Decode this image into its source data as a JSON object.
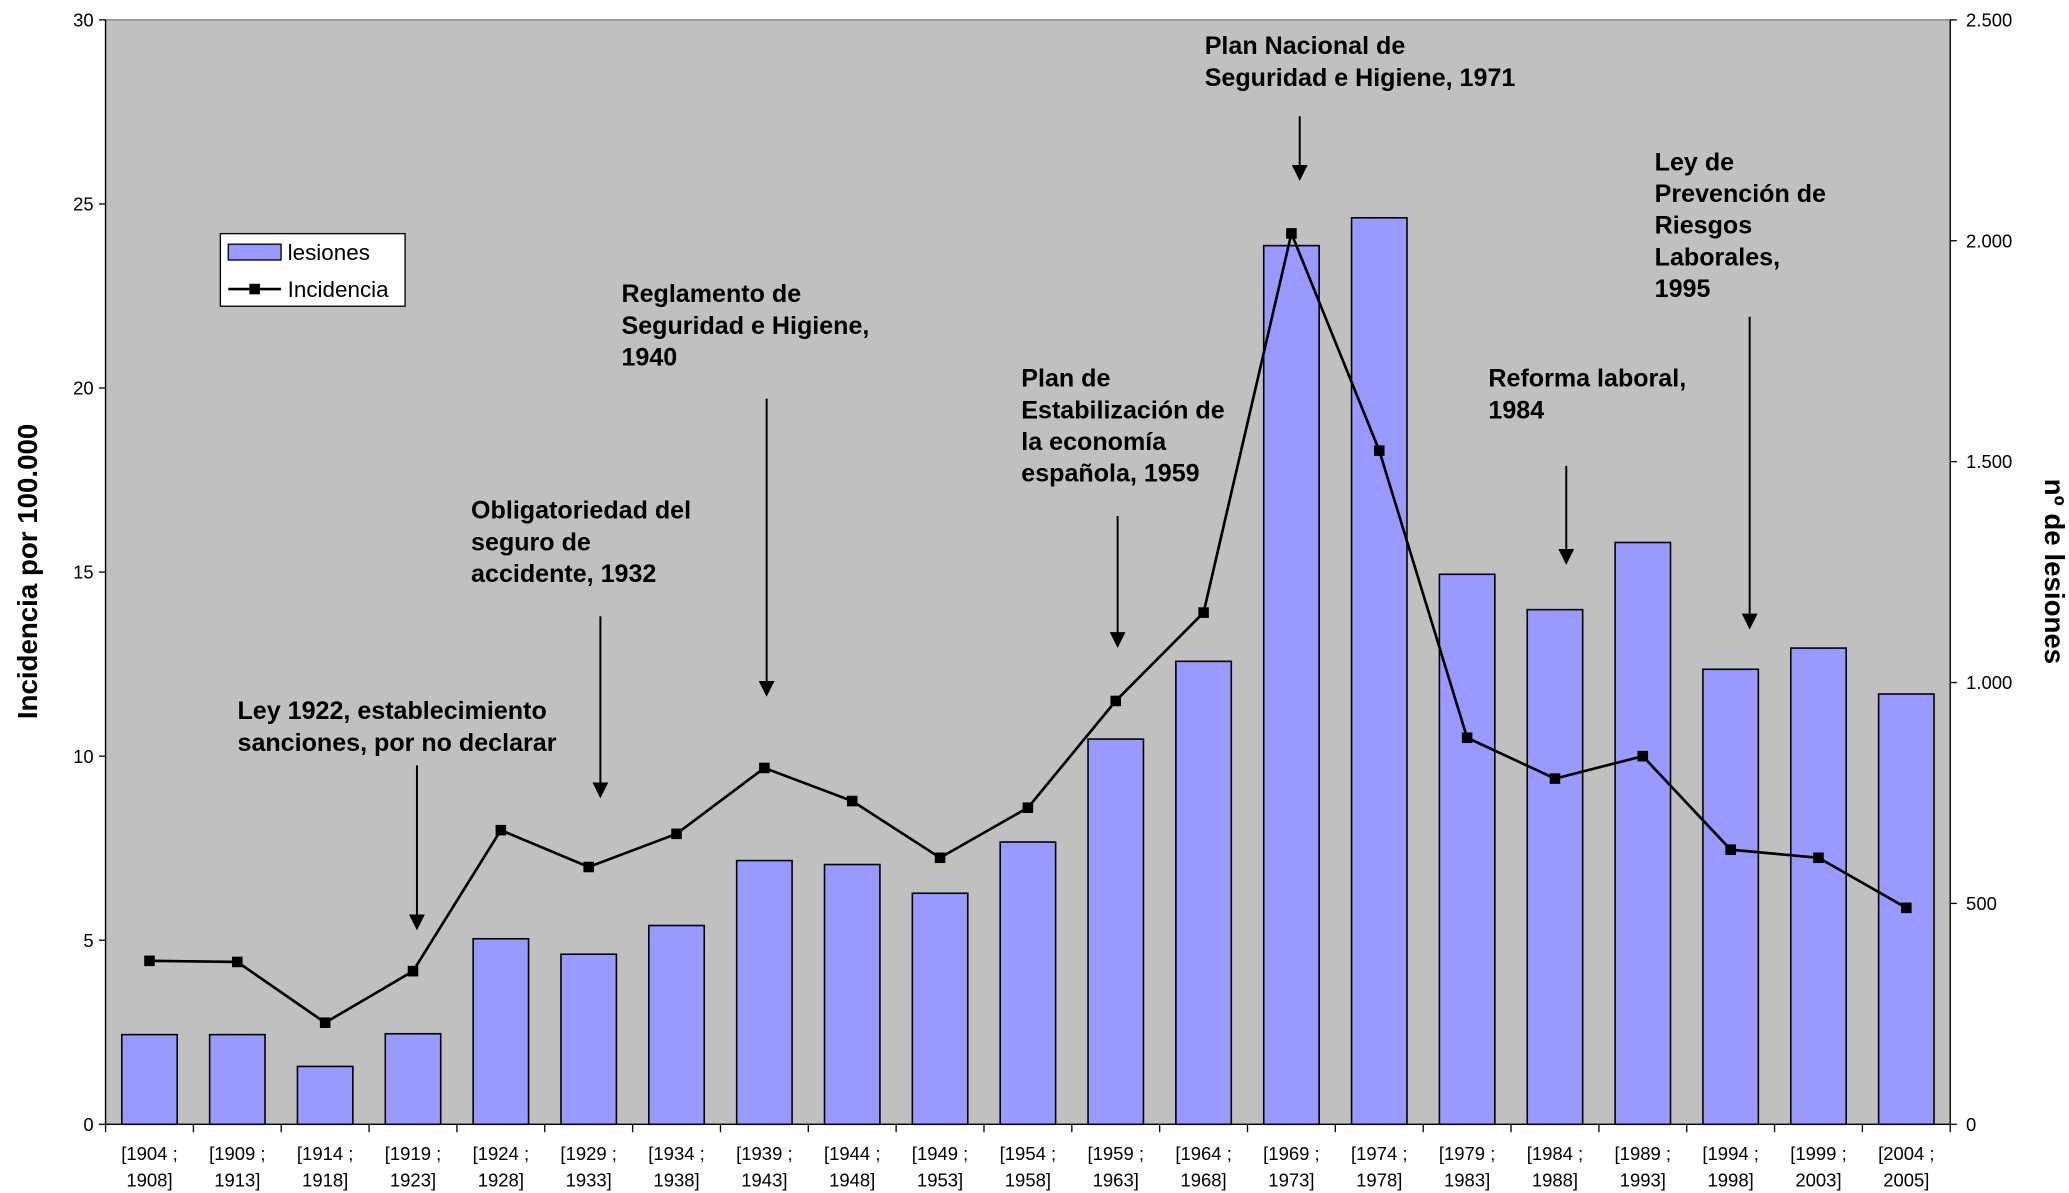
{
  "chart_data": {
    "type": "bar_line",
    "y_title": "Incidencia por 100.000",
    "y2_title": "nº de lesiones",
    "categories": [
      [
        "[1904 ;",
        "1908]"
      ],
      [
        "[1909 ;",
        "1913]"
      ],
      [
        "[1914 ;",
        "1918]"
      ],
      [
        "[1919 ;",
        "1923]"
      ],
      [
        "[1924 ;",
        "1928]"
      ],
      [
        "[1929 ;",
        "1933]"
      ],
      [
        "[1934 ;",
        "1938]"
      ],
      [
        "[1939 ;",
        "1943]"
      ],
      [
        "[1944 ;",
        "1948]"
      ],
      [
        "[1949 ;",
        "1953]"
      ],
      [
        "[1954 ;",
        "1958]"
      ],
      [
        "[1959 ;",
        "1963]"
      ],
      [
        "[1964 ;",
        "1968]"
      ],
      [
        "[1969 ;",
        "1973]"
      ],
      [
        "[1974 ;",
        "1978]"
      ],
      [
        "[1979 ;",
        "1983]"
      ],
      [
        "[1984 ;",
        "1988]"
      ],
      [
        "[1989 ;",
        "1993]"
      ],
      [
        "[1994 ;",
        "1998]"
      ],
      [
        "[1999 ;",
        "2003]"
      ],
      [
        "[2004 ;",
        "2005]"
      ]
    ],
    "series": [
      {
        "name": "lesiones",
        "type": "bar",
        "axis": "y2",
        "color": "#9999ff",
        "values": [
          203,
          203,
          131,
          205,
          420,
          385,
          450,
          597,
          588,
          523,
          639,
          872,
          1048,
          1989,
          2052,
          1245,
          1165,
          1317,
          1030,
          1078,
          974
        ]
      },
      {
        "name": "Incidencia",
        "type": "line",
        "axis": "y",
        "color": "#000000",
        "values": [
          4.44,
          4.41,
          2.76,
          4.16,
          7.99,
          6.99,
          7.89,
          9.68,
          8.78,
          7.24,
          8.6,
          11.5,
          13.9,
          24.2,
          18.3,
          10.5,
          9.39,
          10.0,
          7.46,
          7.24,
          5.88
        ]
      }
    ],
    "ylim": [
      0,
      30
    ],
    "yticks": [
      0,
      5,
      10,
      15,
      20,
      25,
      30
    ],
    "y2lim": [
      0,
      2500
    ],
    "y2ticks": [
      0,
      500,
      {
        "value": 1000,
        "label": "1.000"
      },
      {
        "value": 1500,
        "label": "1.500"
      },
      {
        "value": 2000,
        "label": "2.000"
      },
      {
        "value": 2500,
        "label": "2.500"
      }
    ],
    "annotations": [
      [
        "Ley 1922, establecimiento",
        "sanciones, por no declarar"
      ],
      [
        "Obligatoriedad del",
        "seguro de",
        "accidente, 1932"
      ],
      [
        "Reglamento de",
        "Seguridad e Higiene,",
        "1940"
      ],
      [
        "Plan de",
        "Estabilización de",
        "la economía",
        "española, 1959"
      ],
      [
        "Plan Nacional de",
        "Seguridad e Higiene, 1971"
      ],
      [
        "Reforma laboral,",
        "1984"
      ],
      [
        "Ley de",
        "Prevención de",
        "Riesgos",
        "Laborales,",
        "1995"
      ]
    ]
  }
}
